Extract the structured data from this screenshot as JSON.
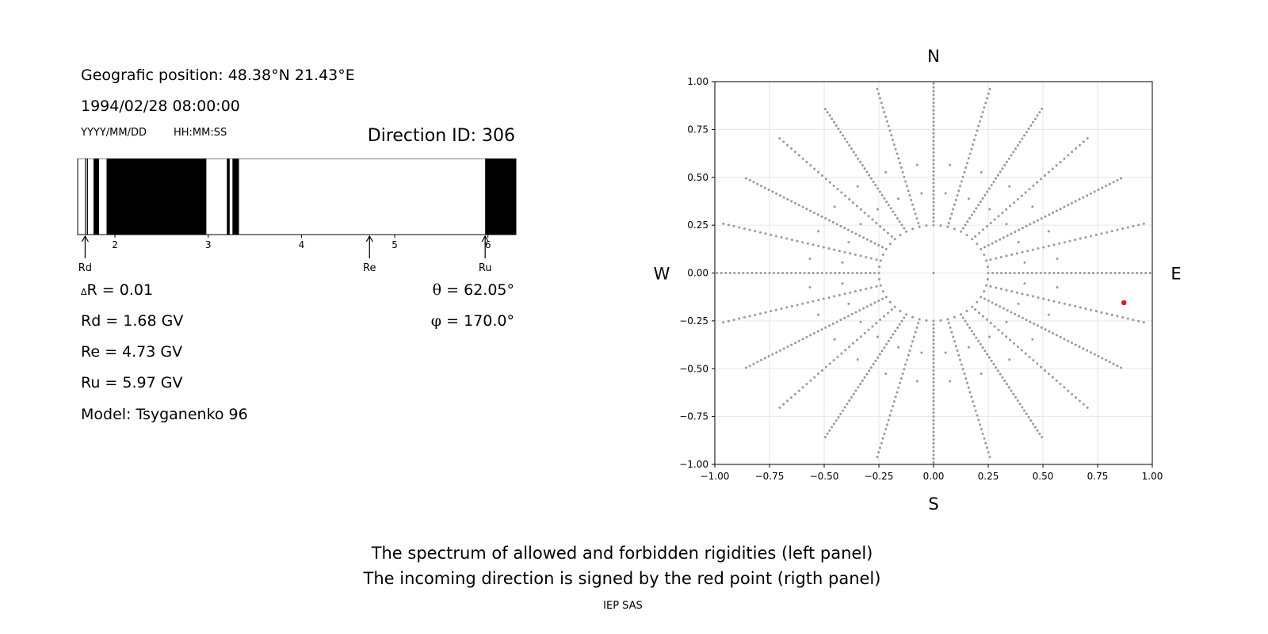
{
  "header": {
    "position": "Geografic position: 48.38°N 21.43°E",
    "datetime": "1994/02/28 08:00:00",
    "date_fmt": "YYYY/MM/DD",
    "time_fmt": "HH:MM:SS",
    "direction": "Direction ID: 306"
  },
  "params": {
    "dr": "R = 0.01",
    "dr_delta": "Δ",
    "rd": "Rd = 1.68 GV",
    "re": "Re = 4.73 GV",
    "ru": "Ru = 5.97 GV",
    "model": "Model: Tsyganenko 96",
    "theta_sym": "θ",
    "theta_val": "= 62.05°",
    "phi_sym": "φ",
    "phi_val": "= 170.0°"
  },
  "footer": {
    "line1": "The spectrum of allowed and forbidden rigidities (left panel)",
    "line2": "The incoming direction is signed by the red point (rigth panel)",
    "credit": "IEP SAS"
  },
  "chart_data": [
    {
      "type": "bar",
      "panel": "spectrum",
      "xlim": [
        1.6,
        6.3
      ],
      "xticks": [
        "2",
        "3",
        "4",
        "5",
        "6"
      ],
      "forbidden_bands": [
        [
          1.68,
          1.69
        ],
        [
          1.7,
          1.71
        ],
        [
          1.77,
          1.83
        ],
        [
          1.91,
          2.98
        ],
        [
          3.2,
          3.23
        ],
        [
          3.26,
          3.33
        ],
        [
          5.97,
          6.3
        ]
      ],
      "markers": [
        {
          "label": "Rd",
          "x": 1.68
        },
        {
          "label": "Re",
          "x": 4.73
        },
        {
          "label": "Ru",
          "x": 5.97
        }
      ],
      "colors": {
        "forbidden": "#000000",
        "allowed": "#ffffff"
      }
    },
    {
      "type": "scatter",
      "panel": "directions",
      "xlim": [
        -1,
        1
      ],
      "ylim": [
        -1,
        1
      ],
      "xticks": [
        "−1.00",
        "−0.75",
        "−0.50",
        "−0.25",
        "0.00",
        "0.25",
        "0.50",
        "0.75",
        "1.00"
      ],
      "yticks": [
        "1.00",
        "0.75",
        "0.50",
        "0.25",
        "0.00",
        "−0.25",
        "−0.50",
        "−0.75",
        "−1.00"
      ],
      "grid": true,
      "compass": {
        "north": "N",
        "south": "S",
        "west": "W",
        "east": "E"
      },
      "grid_points": {
        "spokes": 24,
        "radial_step": 0.02,
        "max_radius": 1.0,
        "ring_radii": [
          0.25,
          0.42,
          0.57
        ]
      },
      "highlight": {
        "x": 0.87,
        "y": -0.155,
        "theta": 62.05,
        "phi": 170.0,
        "color": "#e8141a"
      },
      "colors": {
        "points": "#999999",
        "grid": "#e6e6e6"
      }
    }
  ]
}
